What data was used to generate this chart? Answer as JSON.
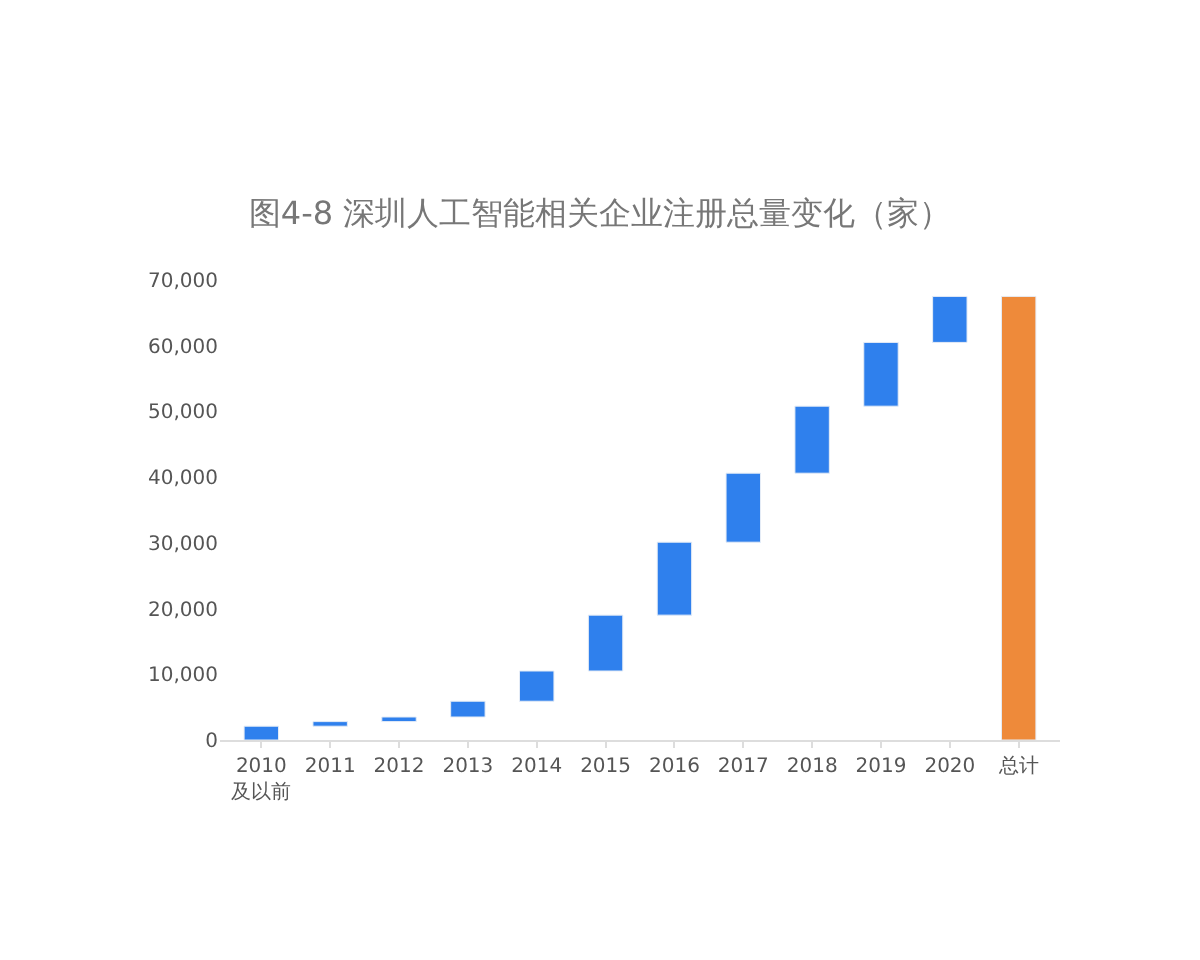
{
  "chart_data": {
    "type": "bar",
    "title": "图4-8 深圳人工智能相关企业注册总量变化（家）",
    "categories": [
      "2010\n及以前",
      "2011",
      "2012",
      "2013",
      "2014",
      "2015",
      "2016",
      "2017",
      "2018",
      "2019",
      "2020",
      "总计"
    ],
    "values": [
      2100,
      700,
      700,
      2400,
      4600,
      8500,
      11100,
      10500,
      10200,
      9700,
      7000,
      67500
    ],
    "base": [
      0,
      2100,
      2800,
      3500,
      5900,
      10500,
      19000,
      30100,
      40600,
      50800,
      60500,
      0
    ],
    "colors": [
      "#2f80ed",
      "#2f80ed",
      "#2f80ed",
      "#2f80ed",
      "#2f80ed",
      "#2f80ed",
      "#2f80ed",
      "#2f80ed",
      "#2f80ed",
      "#2f80ed",
      "#2f80ed",
      "#ee8a3a"
    ],
    "ylim": [
      0,
      70000
    ],
    "yticks": [
      0,
      {
        "value": 10000,
        "label": "10,000"
      },
      {
        "value": 20000,
        "label": "20,000"
      },
      {
        "value": 30000,
        "label": "30,000"
      },
      {
        "value": 40000,
        "label": "40,000"
      },
      {
        "value": 50000,
        "label": "50,000"
      },
      {
        "value": 60000,
        "label": "60,000"
      },
      {
        "value": 70000,
        "label": "70,000"
      }
    ],
    "grid": false,
    "legend": false
  }
}
